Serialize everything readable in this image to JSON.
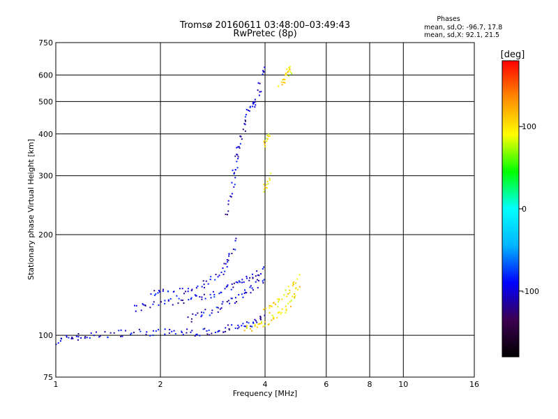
{
  "chart_data": {
    "type": "scatter",
    "title": "Tromsø 20160611 03:48:00–03:49:43",
    "subtitle": "RwPretec (8p)",
    "xlabel": "Frequency [MHz]",
    "ylabel": "Stationary phase Virtual Height [km]",
    "x_scale": "log",
    "y_scale": "log",
    "xlim": [
      1,
      16
    ],
    "ylim": [
      75,
      750
    ],
    "x_ticks": [
      1,
      2,
      4,
      6,
      8,
      10,
      16
    ],
    "x_tick_labels": [
      "1",
      "2",
      "4",
      "6",
      "8",
      "10",
      "16"
    ],
    "y_ticks": [
      75,
      100,
      200,
      300,
      400,
      500,
      600,
      750
    ],
    "y_tick_labels": [
      "75",
      "100",
      "200",
      "300",
      "400",
      "500",
      "600",
      "750"
    ],
    "grid": true,
    "legend": {
      "heading": "Phases",
      "line1": "mean, sd,O: -96.7, 17.8",
      "line2": "mean, sd,X:  92.1, 21.5",
      "placement": "top-right"
    },
    "colorbar": {
      "label": "[deg]",
      "range": [
        -180,
        180
      ],
      "ticks": [
        100,
        0,
        -100
      ],
      "tick_labels": [
        "100",
        "0",
        "-100"
      ],
      "colors": [
        "#000000",
        "#3c0050",
        "#0000ff",
        "#00b4ff",
        "#00ffff",
        "#00ff00",
        "#ffff00",
        "#ff8c00",
        "#ff0000"
      ]
    },
    "series": [
      {
        "mode": "O",
        "phase_deg": -100,
        "traces": [
          {
            "f": [
              1.0,
              1.05,
              1.12,
              1.2,
              1.3,
              1.45,
              1.6,
              1.8,
              2.0,
              2.2,
              2.4,
              2.6,
              2.8,
              3.0,
              3.2,
              3.4,
              3.6,
              3.8,
              4.0
            ],
            "h": [
              95,
              97,
              99,
              99,
              100,
              101,
              102,
              102,
              102,
              102,
              102,
              102,
              103,
              104,
              105,
              106,
              108,
              110,
              113
            ]
          },
          {
            "f": [
              1.7,
              1.8,
              2.0,
              2.2,
              2.4,
              2.6,
              2.8,
              3.0,
              3.2,
              3.4,
              3.6,
              3.8,
              4.0
            ],
            "h": [
              120,
              122,
              124,
              126,
              128,
              130,
              133,
              136,
              140,
              144,
              148,
              152,
              158
            ]
          },
          {
            "f": [
              1.9,
              2.0,
              2.2,
              2.4,
              2.6,
              2.8,
              3.0,
              3.1,
              3.2,
              3.3
            ],
            "h": [
              132,
              134,
              134,
              136,
              140,
              146,
              154,
              162,
              175,
              195
            ]
          },
          {
            "f": [
              3.1,
              3.2,
              3.25,
              3.3,
              3.35,
              3.4,
              3.5,
              3.6,
              3.7,
              3.8,
              3.9,
              4.0
            ],
            "h": [
              230,
              260,
              300,
              330,
              360,
              390,
              430,
              470,
              490,
              500,
              580,
              640
            ]
          },
          {
            "f": [
              2.4,
              2.6,
              2.8,
              3.0,
              3.2,
              3.4,
              3.6,
              3.8,
              4.0
            ],
            "h": [
              112,
              115,
              118,
              122,
              126,
              130,
              136,
              142,
              150
            ]
          }
        ]
      },
      {
        "mode": "X",
        "phase_deg": 100,
        "traces": [
          {
            "f": [
              3.5,
              3.7,
              3.9,
              4.1,
              4.3,
              4.5,
              4.7,
              4.9,
              5.0
            ],
            "h": [
              104,
              106,
              108,
              110,
              114,
              118,
              124,
              132,
              140
            ]
          },
          {
            "f": [
              4.0,
              4.2,
              4.4,
              4.6,
              4.8,
              5.0
            ],
            "h": [
              118,
              122,
              126,
              132,
              140,
              150
            ]
          },
          {
            "f": [
              4.0,
              4.05,
              4.1
            ],
            "h": [
              270,
              285,
              300
            ]
          },
          {
            "f": [
              4.0,
              4.05,
              4.1
            ],
            "h": [
              370,
              385,
              400
            ]
          },
          {
            "f": [
              4.4,
              4.5,
              4.6,
              4.7,
              4.8
            ],
            "h": [
              560,
              580,
              600,
              615,
              630
            ]
          }
        ]
      }
    ]
  }
}
